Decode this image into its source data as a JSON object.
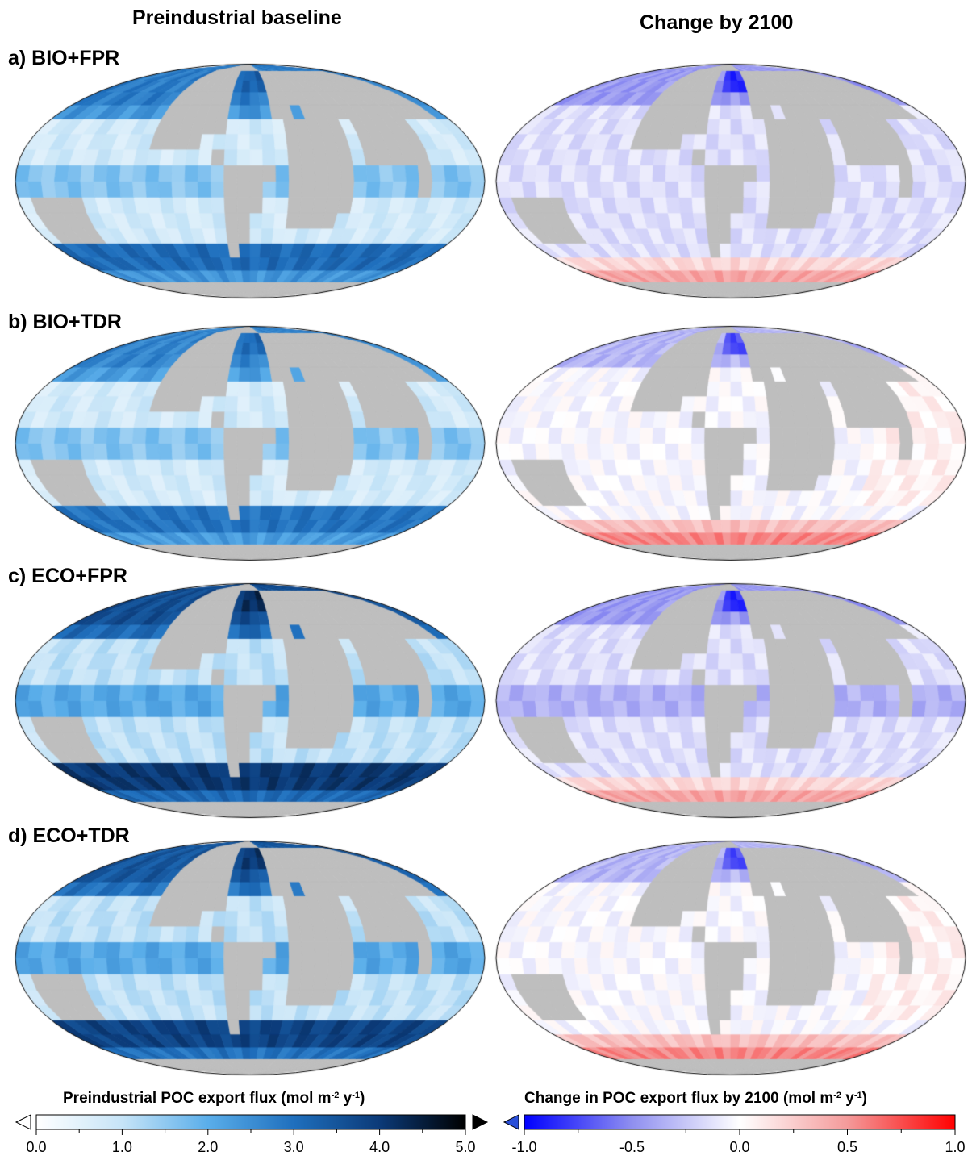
{
  "columns": [
    "Preindustrial baseline",
    "Change by 2100"
  ],
  "rows": [
    {
      "label": "a) BIO+FPR",
      "key": "a"
    },
    {
      "label": "b) BIO+TDR",
      "key": "b"
    },
    {
      "label": "c) ECO+FPR",
      "key": "c"
    },
    {
      "label": "d) ECO+TDR",
      "key": "d"
    }
  ],
  "projection": "Mollweide",
  "land_color": "#bebebe",
  "colorbars": {
    "baseline": {
      "title_pre": "Preindustrial POC export flux (mol m",
      "exp1": "-2",
      "mid": " y",
      "exp2": "-1",
      "title_post": ")",
      "range": [
        0.0,
        5.0
      ],
      "ticks": [
        "0.0",
        "1.0",
        "2.0",
        "3.0",
        "4.0",
        "5.0"
      ],
      "extend_low_color": "#ffffff",
      "extend_high_color": "#000000",
      "colors": [
        "#ffffff",
        "#c6e4f7",
        "#5aaeea",
        "#1f6fbd",
        "#0b3a78",
        "#000000"
      ]
    },
    "change": {
      "title_pre": "Change in POC export flux by 2100 (mol m",
      "exp1": "-2",
      "mid": " y",
      "exp2": "-1",
      "title_post": ")",
      "range": [
        -1.0,
        1.0
      ],
      "ticks": [
        "-1.0",
        "-0.5",
        "0.0",
        "0.5",
        "1.0"
      ],
      "extend_low_color": "#2a4fd8",
      "colors": [
        "#0000ff",
        "#8f8ff0",
        "#ffffff",
        "#f49a9a",
        "#ff0000"
      ]
    }
  }
}
